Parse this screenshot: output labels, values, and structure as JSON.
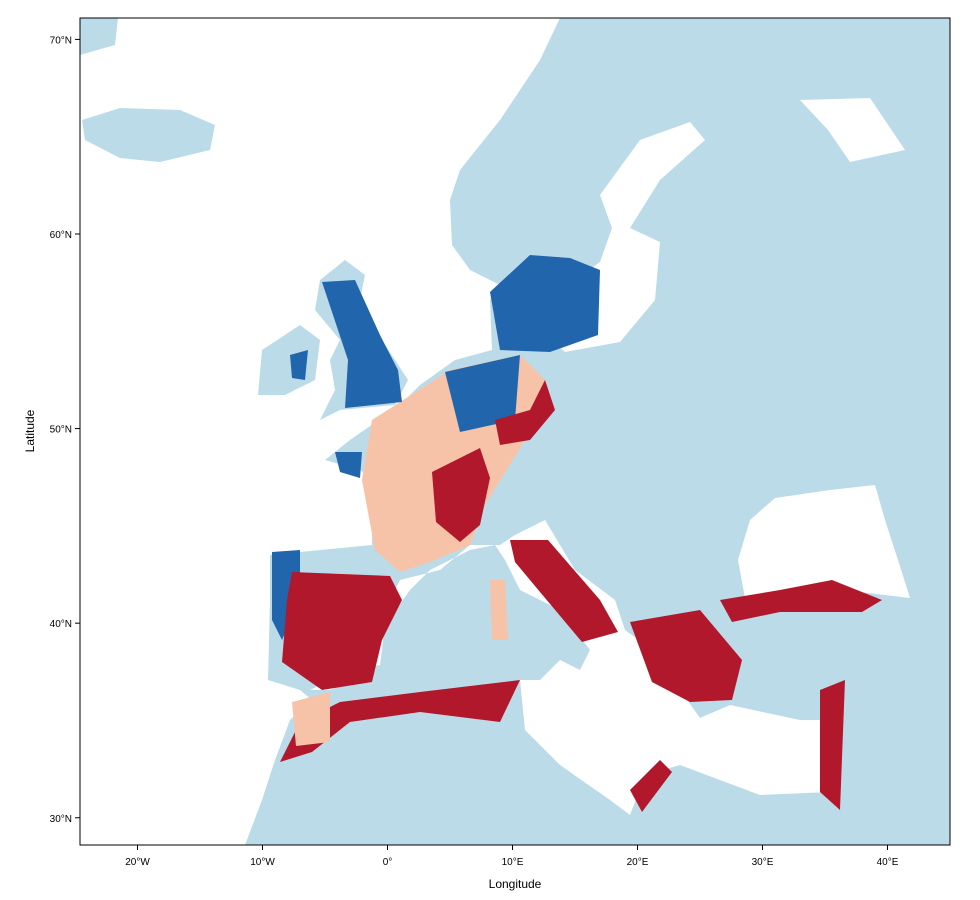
{
  "chart_data": {
    "type": "map",
    "xlabel": "Longitude",
    "ylabel": "Latitude",
    "xlim": [
      -24.6,
      45.0
    ],
    "ylim": [
      28.6,
      71.1
    ],
    "xticks": [
      {
        "value": -20,
        "label": "20°W"
      },
      {
        "value": -10,
        "label": "10°W"
      },
      {
        "value": 0,
        "label": "0°"
      },
      {
        "value": 10,
        "label": "10°E"
      },
      {
        "value": 20,
        "label": "20°E"
      },
      {
        "value": 30,
        "label": "30°E"
      },
      {
        "value": 40,
        "label": "40°E"
      }
    ],
    "yticks": [
      {
        "value": 30,
        "label": "30°N"
      },
      {
        "value": 40,
        "label": "40°N"
      },
      {
        "value": 50,
        "label": "50°N"
      },
      {
        "value": 60,
        "label": "60°N"
      },
      {
        "value": 70,
        "label": "70°N"
      }
    ]
  }
}
